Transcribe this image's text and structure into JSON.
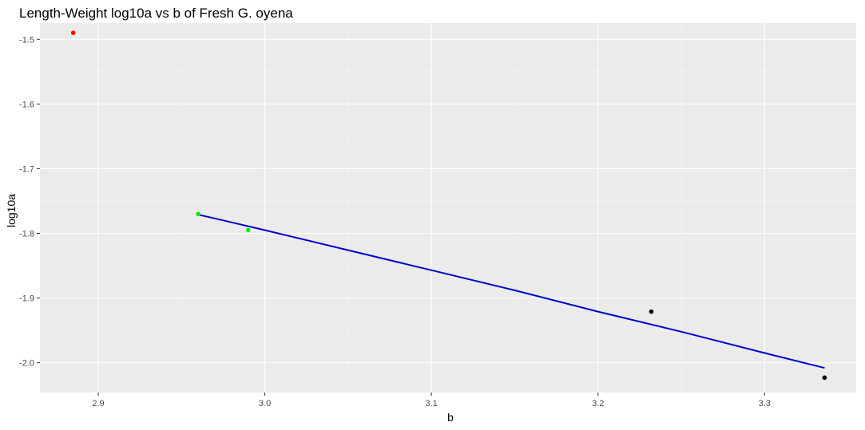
{
  "chart_data": {
    "type": "scatter",
    "title": "Length-Weight log10a vs b of Fresh G. oyena",
    "xlabel": "b",
    "ylabel": "log10a",
    "xlim": [
      2.865,
      3.355
    ],
    "ylim": [
      -2.046,
      -1.475
    ],
    "x_ticks": [
      2.9,
      3.0,
      3.1,
      3.2,
      3.3
    ],
    "x_tick_labels": [
      "2.9",
      "3.0",
      "3.1",
      "3.2",
      "3.3"
    ],
    "y_ticks": [
      -1.5,
      -1.6,
      -1.7,
      -1.8,
      -1.9,
      -2.0
    ],
    "y_tick_labels": [
      "-1.5",
      "-1.6",
      "-1.7",
      "-1.8",
      "-1.9",
      "-2.0"
    ],
    "grid": true,
    "legend": "none",
    "points": [
      {
        "x": 2.885,
        "y": -1.49,
        "color": "#ff0000"
      },
      {
        "x": 2.96,
        "y": -1.77,
        "color": "#00ee00"
      },
      {
        "x": 2.99,
        "y": -1.795,
        "color": "#00ee00"
      },
      {
        "x": 3.232,
        "y": -1.921,
        "color": "#000000"
      },
      {
        "x": 3.336,
        "y": -2.023,
        "color": "#000000"
      }
    ],
    "fit_line": {
      "x": [
        2.96,
        2.98,
        3.0,
        3.05,
        3.1,
        3.15,
        3.2,
        3.25,
        3.3,
        3.336
      ],
      "y": [
        -1.771,
        -1.783,
        -1.795,
        -1.826,
        -1.857,
        -1.888,
        -1.921,
        -1.952,
        -1.985,
        -2.008
      ],
      "color": "#0000cc"
    },
    "colors": {
      "panel_background": "#ebebeb",
      "grid_major": "#ffffff",
      "grid_minor": "#f5f5f5"
    }
  }
}
